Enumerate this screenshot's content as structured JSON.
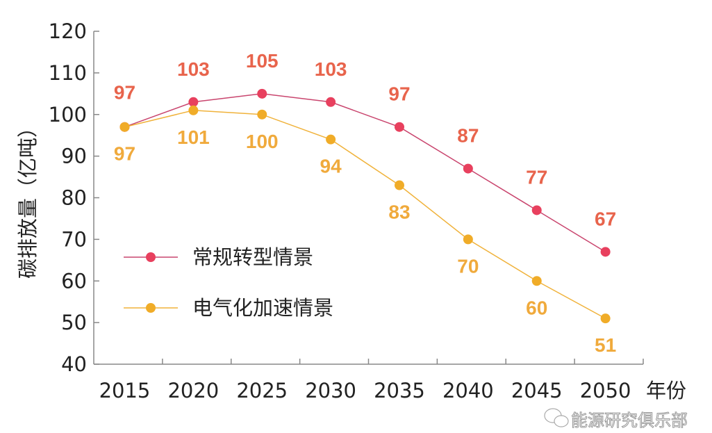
{
  "chart_data": {
    "type": "line",
    "title": "",
    "xlabel": "年份",
    "ylabel": "碳排放量（亿吨）",
    "ylim": [
      40,
      120
    ],
    "yticks": [
      40,
      50,
      60,
      70,
      80,
      90,
      100,
      110,
      120
    ],
    "categories": [
      "2015",
      "2020",
      "2025",
      "2030",
      "2035",
      "2040",
      "2045",
      "2050"
    ],
    "grid": false,
    "legend_position": "center-left",
    "series": [
      {
        "name": "常规转型情景",
        "values": [
          97,
          103,
          105,
          103,
          97,
          87,
          77,
          67
        ],
        "line_color": "#c9456e",
        "marker_color": "#e8405e",
        "label_color": "#e8644c"
      },
      {
        "name": "电气化加速情景",
        "values": [
          97,
          101,
          100,
          94,
          83,
          70,
          60,
          51
        ],
        "line_color": "#f0b23a",
        "marker_color": "#f0ac28",
        "label_color": "#f0aa3c"
      }
    ]
  },
  "watermark": "能源研究俱乐部"
}
